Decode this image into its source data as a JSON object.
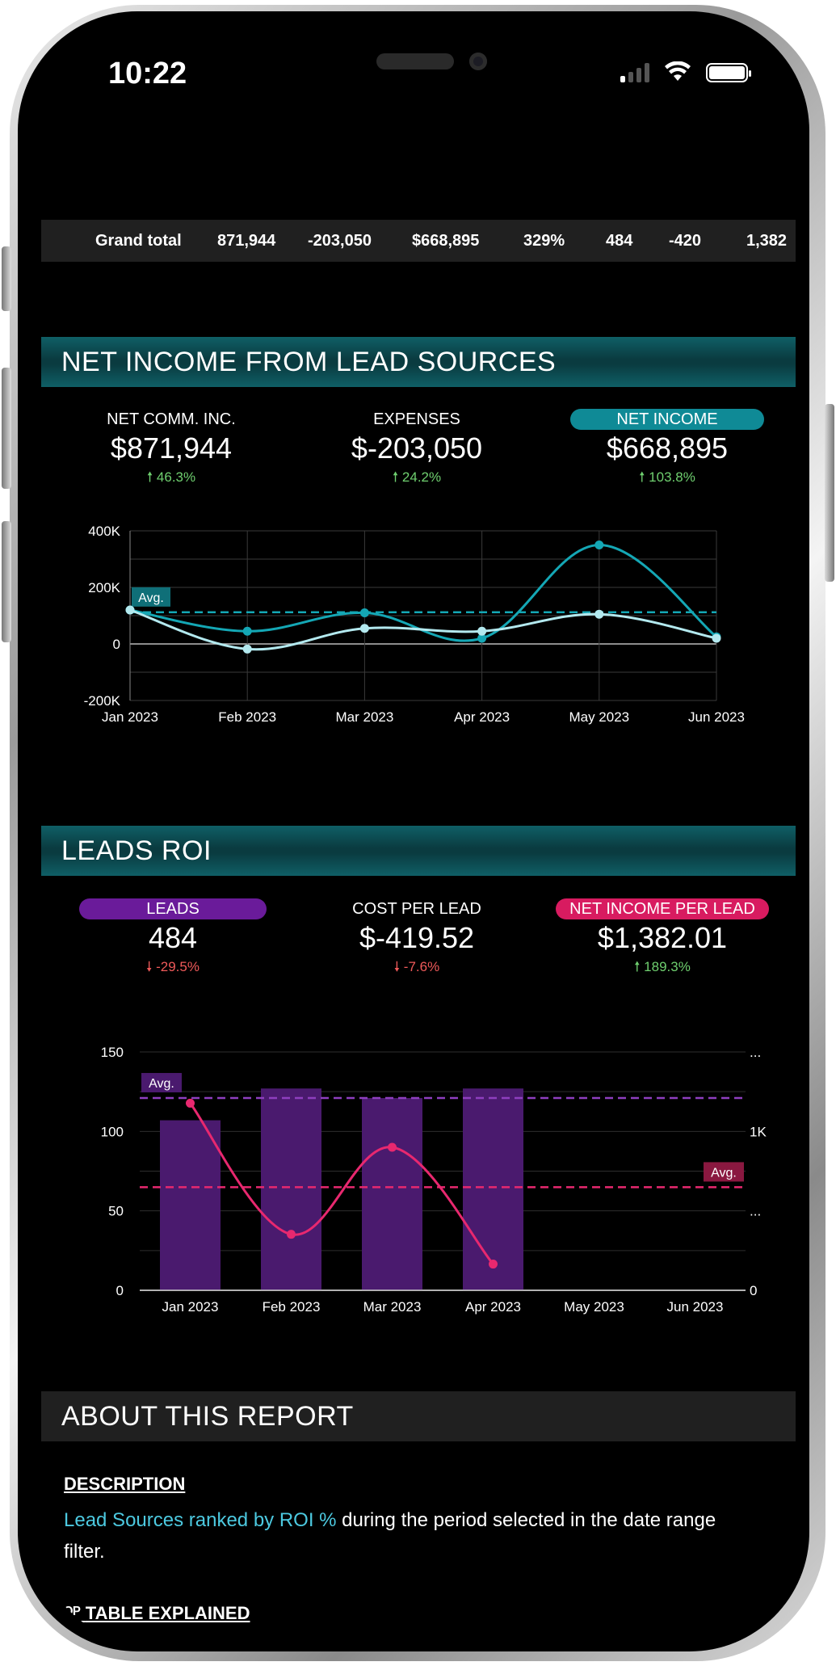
{
  "status_bar": {
    "time": "10:22"
  },
  "grand_total": {
    "label": "Grand total",
    "values": [
      "871,944",
      "-203,050",
      "$668,895",
      "329%",
      "484",
      "-420",
      "1,382"
    ]
  },
  "net_income_section": {
    "title": "NET INCOME FROM LEAD SOURCES",
    "kpis": [
      {
        "label": "NET COMM. INC.",
        "value": "$871,944",
        "change": "46.3%",
        "direction": "up"
      },
      {
        "label": "EXPENSES",
        "value": "$-203,050",
        "change": "24.2%",
        "direction": "up"
      },
      {
        "label": "NET INCOME",
        "value": "$668,895",
        "change": "103.8%",
        "direction": "up",
        "highlight": "#0f8a96"
      }
    ]
  },
  "leads_section": {
    "title": "LEADS ROI",
    "kpis": [
      {
        "label": "LEADS",
        "value": "484",
        "change": "-29.5%",
        "direction": "down",
        "highlight": "#6a1b9a"
      },
      {
        "label": "COST PER LEAD",
        "value": "$-419.52",
        "change": "-7.6%",
        "direction": "down"
      },
      {
        "label": "NET INCOME PER LEAD",
        "value": "$1,382.01",
        "change": "189.3%",
        "direction": "up",
        "highlight": "#d81b60"
      }
    ]
  },
  "chart_data": [
    {
      "type": "line",
      "categories": [
        "Jan 2023",
        "Feb 2023",
        "Mar 2023",
        "Apr 2023",
        "May 2023",
        "Jun 2023"
      ],
      "yticks": [
        "400K",
        "200K",
        "0",
        "-200K"
      ],
      "ylim": [
        -200000,
        400000
      ],
      "series": [
        {
          "values": [
            120000,
            45000,
            110000,
            20000,
            350000,
            25000
          ],
          "color": "#14a7b5"
        },
        {
          "values": [
            120000,
            -18000,
            55000,
            45000,
            105000,
            20000
          ],
          "color": "#b3e9ef"
        }
      ],
      "avg": {
        "label": "Avg.",
        "value": 112000,
        "color": "#14a7b5"
      },
      "grid": true
    },
    {
      "type": "bar",
      "categories": [
        "Jan 2023",
        "Feb 2023",
        "Mar 2023",
        "Apr 2023",
        "May 2023",
        "Jun 2023"
      ],
      "yticks_left": [
        "150",
        "100",
        "50",
        "0"
      ],
      "ylim_left": [
        0,
        150
      ],
      "yticks_right": [
        "...",
        "1K",
        "...",
        "0"
      ],
      "ylim_right": [
        0,
        2000
      ],
      "bars": {
        "values": [
          107,
          127,
          121,
          127,
          null,
          null
        ],
        "color": "#4a1a6e",
        "axis": "left"
      },
      "line": {
        "values": [
          1570,
          470,
          1200,
          220,
          null,
          null
        ],
        "color": "#e8286f",
        "axis": "right"
      },
      "avg_bars": {
        "label": "Avg.",
        "value": 121,
        "color": "#8e3fbf"
      },
      "avg_line": {
        "label": "Avg.",
        "value": 865,
        "color": "#e8286f"
      },
      "grid": true
    }
  ],
  "about": {
    "title": "ABOUT THIS REPORT",
    "description_heading": "DESCRIPTION",
    "description_highlight": "Lead Sources ranked by ROI %",
    "description_rest": " during the period selected in the date range filter.",
    "table_heading": "TABLE EXPLAINED",
    "table_heading_prefix": "ᴼᴾ"
  }
}
